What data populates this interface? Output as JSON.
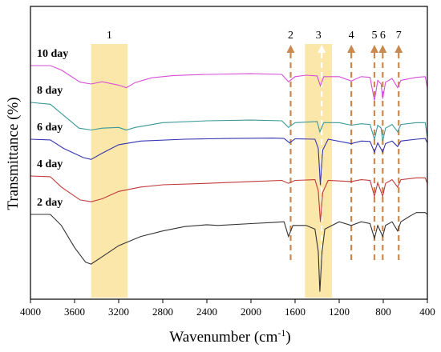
{
  "chart_data": {
    "type": "line",
    "xlabel_main": "Wavenumber (cm",
    "xlabel_sup": "-1",
    "xlabel_end": ")",
    "ylabel": "Transmittance (%)",
    "xlim": [
      4000,
      400
    ],
    "x_reversed": true,
    "x_ticks": [
      4000,
      3600,
      3200,
      2800,
      2400,
      2000,
      1600,
      1200,
      800,
      400
    ],
    "y_ticks_shown": false,
    "grid": false,
    "highlight_bands": [
      {
        "label": "1",
        "x_range": [
          3450,
          3120
        ],
        "color": "#fbe7aa"
      },
      {
        "label": "3",
        "x_range": [
          1510,
          1265
        ],
        "color": "#fbe7aa"
      }
    ],
    "peak_markers": [
      {
        "label": "2",
        "x": 1640,
        "color": "#c9894f"
      },
      {
        "label": "4",
        "x": 1090,
        "color": "#c9894f"
      },
      {
        "label": "5",
        "x": 880,
        "color": "#c9894f"
      },
      {
        "label": "6",
        "x": 805,
        "color": "#c9894f"
      },
      {
        "label": "7",
        "x": 660,
        "color": "#c9894f"
      }
    ],
    "series": [
      {
        "name": "10 day",
        "color": "#d64fd6",
        "offset": 4,
        "points": [
          [
            4000,
            0
          ],
          [
            3820,
            0
          ],
          [
            3720,
            -0.12
          ],
          [
            3550,
            -0.45
          ],
          [
            3450,
            -0.5
          ],
          [
            3350,
            -0.44
          ],
          [
            3200,
            -0.53
          ],
          [
            3130,
            -0.6
          ],
          [
            3050,
            -0.46
          ],
          [
            2900,
            -0.33
          ],
          [
            2700,
            -0.27
          ],
          [
            2400,
            -0.24
          ],
          [
            2000,
            -0.22
          ],
          [
            1720,
            -0.24
          ],
          [
            1660,
            -0.44
          ],
          [
            1600,
            -0.3
          ],
          [
            1500,
            -0.26
          ],
          [
            1400,
            -0.28
          ],
          [
            1370,
            -0.55
          ],
          [
            1340,
            -0.3
          ],
          [
            1200,
            -0.3
          ],
          [
            1090,
            -0.42
          ],
          [
            1000,
            -0.3
          ],
          [
            920,
            -0.32
          ],
          [
            880,
            -0.95
          ],
          [
            850,
            -0.4
          ],
          [
            820,
            -0.5
          ],
          [
            805,
            -0.9
          ],
          [
            780,
            -0.45
          ],
          [
            720,
            -0.35
          ],
          [
            670,
            -0.6
          ],
          [
            640,
            -0.4
          ],
          [
            500,
            -0.32
          ],
          [
            420,
            -0.3
          ],
          [
            400,
            -0.6
          ]
        ]
      },
      {
        "name": "8 day",
        "color": "#3a9898",
        "offset": 3,
        "points": [
          [
            4000,
            0
          ],
          [
            3820,
            -0.05
          ],
          [
            3720,
            -0.3
          ],
          [
            3560,
            -0.7
          ],
          [
            3450,
            -0.75
          ],
          [
            3350,
            -0.7
          ],
          [
            3200,
            -0.68
          ],
          [
            3130,
            -0.75
          ],
          [
            3050,
            -0.68
          ],
          [
            2800,
            -0.55
          ],
          [
            2400,
            -0.5
          ],
          [
            2000,
            -0.48
          ],
          [
            1720,
            -0.5
          ],
          [
            1660,
            -0.68
          ],
          [
            1600,
            -0.55
          ],
          [
            1400,
            -0.52
          ],
          [
            1375,
            -0.8
          ],
          [
            1340,
            -0.55
          ],
          [
            1200,
            -0.55
          ],
          [
            1090,
            -0.62
          ],
          [
            1000,
            -0.58
          ],
          [
            920,
            -0.6
          ],
          [
            880,
            -1.0
          ],
          [
            850,
            -0.62
          ],
          [
            820,
            -0.7
          ],
          [
            805,
            -1.05
          ],
          [
            780,
            -0.7
          ],
          [
            720,
            -0.6
          ],
          [
            670,
            -0.8
          ],
          [
            640,
            -0.6
          ],
          [
            500,
            -0.55
          ],
          [
            420,
            -0.55
          ],
          [
            400,
            -0.95
          ]
        ]
      },
      {
        "name": "6 day",
        "color": "#3434b0",
        "offset": 2,
        "points": [
          [
            4000,
            0
          ],
          [
            3820,
            -0.02
          ],
          [
            3700,
            -0.25
          ],
          [
            3520,
            -0.5
          ],
          [
            3450,
            -0.55
          ],
          [
            3350,
            -0.38
          ],
          [
            3200,
            -0.15
          ],
          [
            3000,
            -0.05
          ],
          [
            2600,
            0.0
          ],
          [
            2200,
            0.02
          ],
          [
            1800,
            0.03
          ],
          [
            1700,
            0.02
          ],
          [
            1650,
            -0.1
          ],
          [
            1600,
            0.01
          ],
          [
            1420,
            0.0
          ],
          [
            1390,
            -0.25
          ],
          [
            1370,
            -1.25
          ],
          [
            1350,
            -0.3
          ],
          [
            1300,
            0.0
          ],
          [
            1090,
            -0.12
          ],
          [
            1000,
            -0.05
          ],
          [
            920,
            -0.06
          ],
          [
            880,
            -0.35
          ],
          [
            850,
            -0.1
          ],
          [
            805,
            -0.35
          ],
          [
            780,
            -0.12
          ],
          [
            720,
            -0.05
          ],
          [
            670,
            -0.2
          ],
          [
            640,
            -0.05
          ],
          [
            500,
            0.0
          ],
          [
            420,
            0.02
          ],
          [
            400,
            -0.1
          ]
        ]
      },
      {
        "name": "4 day",
        "color": "#c0393b",
        "offset": 1,
        "points": [
          [
            4000,
            0
          ],
          [
            3820,
            -0.02
          ],
          [
            3720,
            -0.3
          ],
          [
            3550,
            -0.65
          ],
          [
            3450,
            -0.7
          ],
          [
            3350,
            -0.62
          ],
          [
            3200,
            -0.42
          ],
          [
            3000,
            -0.3
          ],
          [
            2800,
            -0.24
          ],
          [
            2400,
            -0.2
          ],
          [
            2000,
            -0.15
          ],
          [
            1720,
            -0.12
          ],
          [
            1660,
            -0.2
          ],
          [
            1600,
            -0.12
          ],
          [
            1420,
            -0.1
          ],
          [
            1390,
            -0.4
          ],
          [
            1370,
            -1.25
          ],
          [
            1350,
            -0.45
          ],
          [
            1300,
            -0.12
          ],
          [
            1090,
            -0.15
          ],
          [
            1000,
            -0.1
          ],
          [
            920,
            -0.12
          ],
          [
            880,
            -0.55
          ],
          [
            850,
            -0.18
          ],
          [
            805,
            -0.55
          ],
          [
            780,
            -0.2
          ],
          [
            720,
            -0.1
          ],
          [
            670,
            -0.3
          ],
          [
            640,
            -0.1
          ],
          [
            500,
            -0.05
          ],
          [
            420,
            -0.05
          ],
          [
            400,
            -0.2
          ]
        ]
      },
      {
        "name": "2 day",
        "color": "#333333",
        "offset": 0,
        "points": [
          [
            4000,
            0
          ],
          [
            3820,
            0.0
          ],
          [
            3720,
            -0.3
          ],
          [
            3600,
            -0.9
          ],
          [
            3500,
            -1.3
          ],
          [
            3450,
            -1.35
          ],
          [
            3350,
            -1.15
          ],
          [
            3200,
            -0.85
          ],
          [
            3000,
            -0.6
          ],
          [
            2800,
            -0.45
          ],
          [
            2600,
            -0.33
          ],
          [
            2400,
            -0.28
          ],
          [
            2300,
            -0.3
          ],
          [
            2000,
            -0.25
          ],
          [
            1800,
            -0.22
          ],
          [
            1700,
            -0.2
          ],
          [
            1660,
            -0.6
          ],
          [
            1620,
            -0.3
          ],
          [
            1500,
            -0.3
          ],
          [
            1420,
            -0.4
          ],
          [
            1390,
            -1.0
          ],
          [
            1375,
            -2.1
          ],
          [
            1355,
            -1.0
          ],
          [
            1330,
            -0.4
          ],
          [
            1200,
            -0.2
          ],
          [
            1090,
            -0.3
          ],
          [
            1000,
            -0.2
          ],
          [
            920,
            -0.25
          ],
          [
            880,
            -0.65
          ],
          [
            850,
            -0.3
          ],
          [
            805,
            -0.6
          ],
          [
            780,
            -0.3
          ],
          [
            720,
            -0.2
          ],
          [
            670,
            -0.45
          ],
          [
            640,
            -0.2
          ],
          [
            560,
            -0.05
          ],
          [
            500,
            0.05
          ],
          [
            420,
            0.05
          ],
          [
            400,
            0.0
          ]
        ]
      }
    ]
  }
}
